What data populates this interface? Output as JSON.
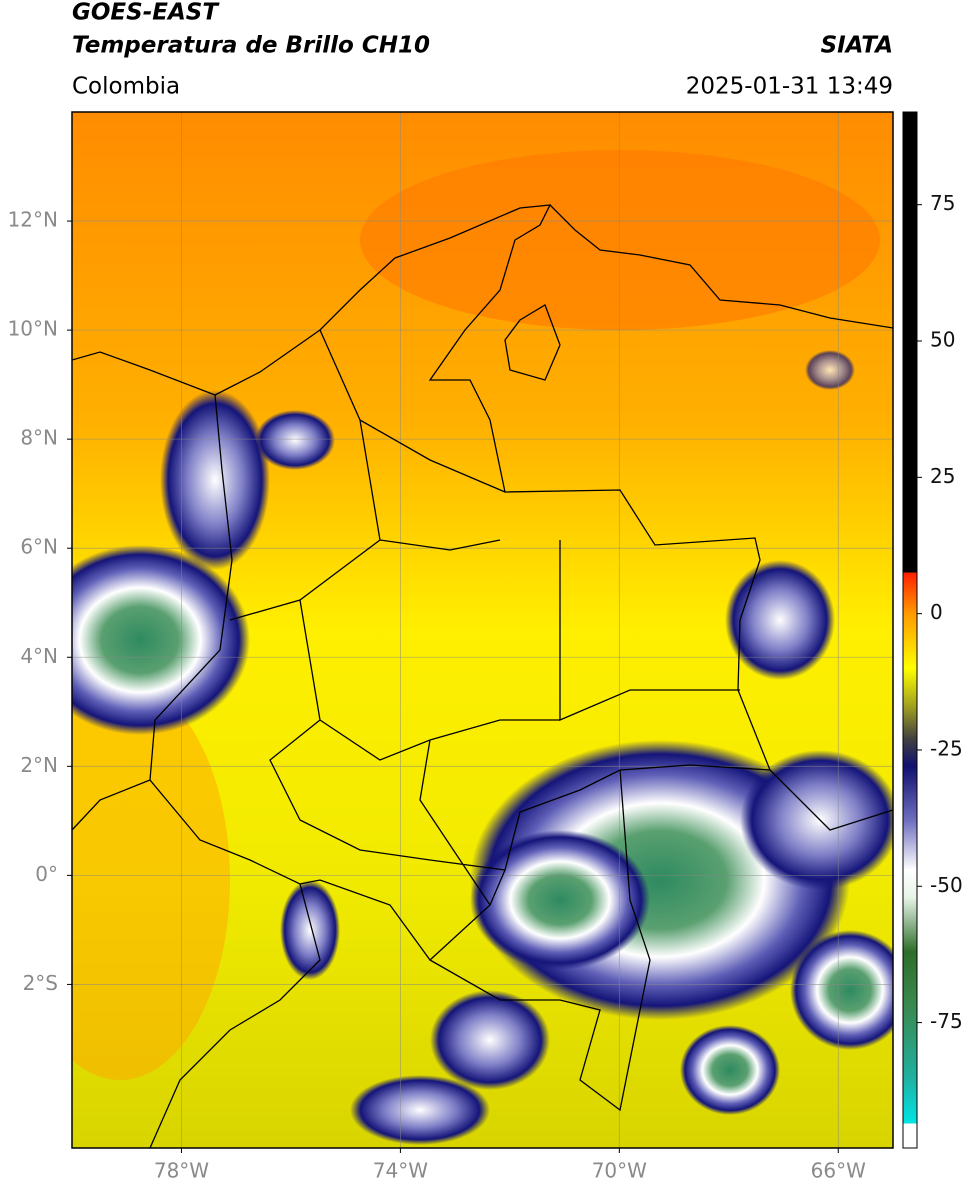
{
  "header": {
    "satellite": "GOES-EAST",
    "product": "Temperatura de Brillo CH10",
    "source": "SIATA",
    "region": "Colombia",
    "datetime": "2025-01-31 13:49"
  },
  "map": {
    "xlim": [
      -80,
      -65
    ],
    "ylim": [
      -5,
      14
    ],
    "xticks": [
      {
        "value": -78,
        "label": "78°W"
      },
      {
        "value": -74,
        "label": "74°W"
      },
      {
        "value": -70,
        "label": "70°W"
      },
      {
        "value": -66,
        "label": "66°W"
      }
    ],
    "yticks": [
      {
        "value": -2,
        "label": "2°S"
      },
      {
        "value": 0,
        "label": "0°"
      },
      {
        "value": 2,
        "label": "2°N"
      },
      {
        "value": 4,
        "label": "4°N"
      },
      {
        "value": 6,
        "label": "6°N"
      },
      {
        "value": 8,
        "label": "8°N"
      },
      {
        "value": 10,
        "label": "10°N"
      },
      {
        "value": 12,
        "label": "12°N"
      }
    ],
    "grid": true
  },
  "colorbar": {
    "lim": [
      -98,
      92
    ],
    "ticks": [
      -75,
      -50,
      -25,
      0,
      25,
      50,
      75
    ],
    "stops": [
      {
        "value": -98,
        "color": "#ffffff"
      },
      {
        "value": -93.5,
        "color": "#ffffff"
      },
      {
        "value": -93.5,
        "color": "#00e5e5"
      },
      {
        "value": -85,
        "color": "#20b0a0"
      },
      {
        "value": -72,
        "color": "#3a8a50"
      },
      {
        "value": -62,
        "color": "#2e6e2a"
      },
      {
        "value": -52,
        "color": "#e8f5e8"
      },
      {
        "value": -47,
        "color": "#ffffff"
      },
      {
        "value": -38,
        "color": "#7070c0"
      },
      {
        "value": -28,
        "color": "#101070"
      },
      {
        "value": -23,
        "color": "#404040"
      },
      {
        "value": -17,
        "color": "#a0a020"
      },
      {
        "value": -10,
        "color": "#ffff00"
      },
      {
        "value": 0,
        "color": "#ff9a00"
      },
      {
        "value": 7.5,
        "color": "#ff2000"
      },
      {
        "value": 7.5,
        "color": "#000000"
      },
      {
        "value": 92,
        "color": "#000000"
      }
    ]
  }
}
